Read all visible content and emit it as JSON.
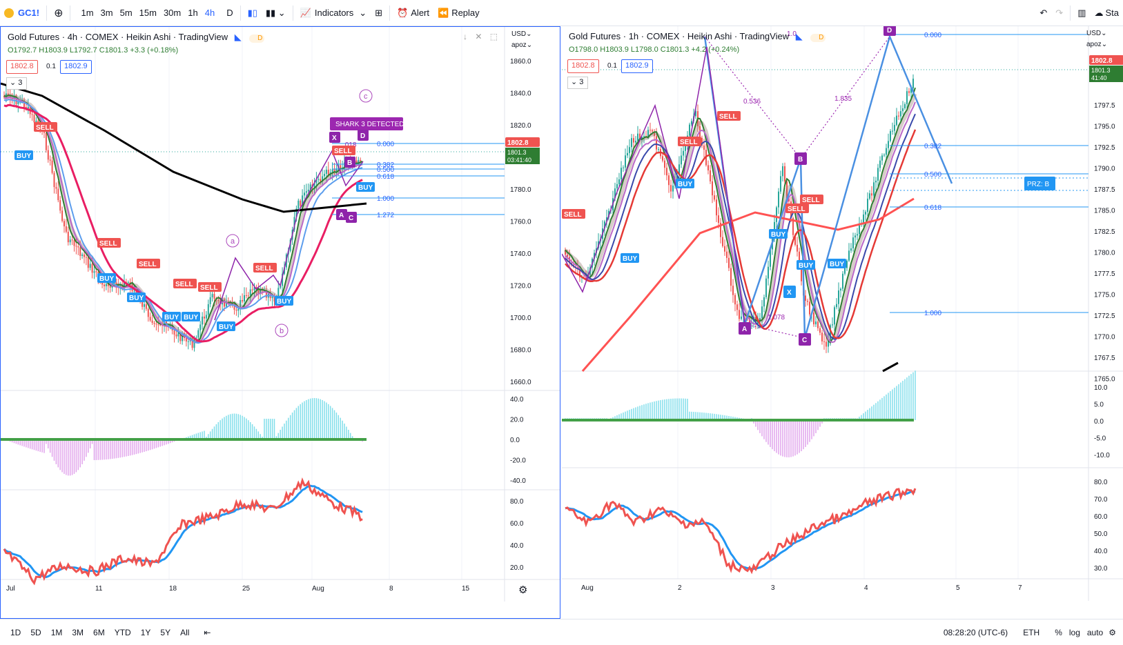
{
  "toolbar": {
    "symbol": "GC1!",
    "intervals": [
      "1m",
      "3m",
      "5m",
      "15m",
      "30m",
      "1h",
      "4h"
    ],
    "active_interval": "4h",
    "chart_type": "D",
    "indicators_label": "Indicators",
    "alert_label": "Alert",
    "replay_label": "Replay",
    "publish_label": "Sta"
  },
  "left": {
    "title": "Gold Futures · 4h · COMEX · Heikin Ashi · TradingView",
    "ohlc": {
      "o": "O1792.7",
      "h": "H1803.9",
      "l": "L1792.7",
      "c": "C1801.3",
      "chg": "+3.3 (+0.18%)"
    },
    "sell_box": "1802.8",
    "spread": "0.1",
    "buy_box": "1802.9",
    "collapse": "3",
    "currency": "USD",
    "scale_mode": "apoz",
    "price_ticks": [
      "1860.0",
      "1840.0",
      "1820.0",
      "1800.0",
      "1780.0",
      "1760.0",
      "1740.0",
      "1720.0",
      "1700.0",
      "1680.0",
      "1660.0"
    ],
    "last_price": "1802.8",
    "last_price2": "1801.3",
    "countdown": "03:41:40",
    "osc_ticks": [
      "40.0",
      "20.0",
      "0.0",
      "-20.0",
      "-40.0"
    ],
    "rsi_ticks": [
      "80.0",
      "60.0",
      "40.0",
      "20.0"
    ],
    "time_ticks": [
      "Jul",
      "11",
      "18",
      "25",
      "Aug",
      "8",
      "15"
    ],
    "fib": [
      "0.000",
      "0.382",
      "0.500",
      "0.618",
      "1.000",
      "1.272"
    ],
    "banner": "SHARK 3 DETECTED",
    "wave": [
      "a",
      "b",
      "c"
    ],
    "points": [
      "X",
      "A",
      "B",
      "C",
      "D"
    ],
    "ratio": ".018"
  },
  "right": {
    "title": "Gold Futures · 1h · COMEX · Heikin Ashi · TradingView",
    "ohlc": {
      "o": "O1798.0",
      "h": "H1803.9",
      "l": "L1798.0",
      "c": "C1801.3",
      "chg": "+4.2 (+0.24%)"
    },
    "sell_box": "1802.8",
    "spread": "0.1",
    "buy_box": "1802.9",
    "collapse": "3",
    "currency": "USD",
    "scale_mode": "apoz",
    "price_ticks": [
      "1797.5",
      "1795.0",
      "1792.5",
      "1790.0",
      "1787.5",
      "1785.0",
      "1782.5",
      "1780.0",
      "1777.5",
      "1775.0",
      "1772.5",
      "1770.0",
      "1767.5",
      "1765.0"
    ],
    "last_price": "1802.8",
    "last_price2": "1801.3",
    "countdown": "41:40",
    "osc_ticks": [
      "10.0",
      "5.0",
      "0.0",
      "-5.0",
      "-10.0"
    ],
    "rsi_ticks": [
      "80.0",
      "70.0",
      "60.0",
      "50.0",
      "40.0",
      "30.0"
    ],
    "time_ticks": [
      "Aug",
      "2",
      "3",
      "4",
      "5",
      "7"
    ],
    "fib": [
      "0.000",
      "0.382",
      "0.500",
      "0.618",
      "1.000"
    ],
    "prz": "PRZ: B",
    "points": [
      "X",
      "A",
      "B",
      "C",
      "D"
    ],
    "ratios": [
      "0.536",
      "1.835",
      "1.078",
      "1.0"
    ]
  },
  "bottom": {
    "ranges": [
      "1D",
      "5D",
      "1M",
      "3M",
      "6M",
      "YTD",
      "1Y",
      "5Y",
      "All"
    ],
    "time": "08:28:20 (UTC-6)",
    "session": "ETH",
    "pct": "%",
    "log": "log",
    "auto": "auto"
  },
  "signals": {
    "buy": "BUY",
    "sell": "SELL"
  },
  "colors": {
    "accent": "#2962ff",
    "up": "#26a69a",
    "down": "#ef5350",
    "purple": "#9c27b0",
    "black": "#000000",
    "ma_red": "#e91e63",
    "ma_blue": "#2196f3"
  }
}
